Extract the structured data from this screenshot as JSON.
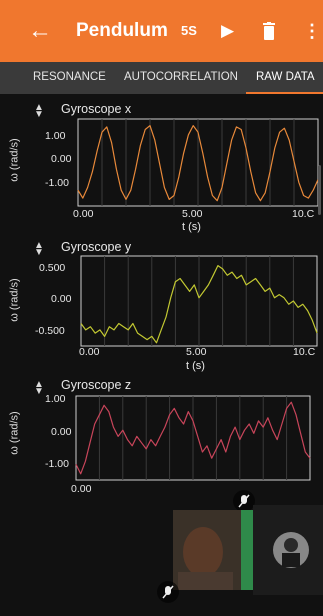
{
  "app": {
    "title": "Pendulum",
    "duration": "5S",
    "accent": "#f0772e",
    "back_icon": "back-arrow-icon",
    "play_icon": "play-icon",
    "delete_icon": "trash-icon",
    "menu_icon": "more-vert-icon"
  },
  "tabs": [
    {
      "label": "RESONANCE"
    },
    {
      "label": "AUTOCORRELATION"
    },
    {
      "label": "RAW DATA",
      "active": true
    }
  ],
  "chart_data": [
    {
      "type": "line",
      "title": "Gyroscope x",
      "xlabel": "t (s)",
      "ylabel": "ω (rad/s)",
      "xlim": [
        0,
        10
      ],
      "ylim": [
        -1.6,
        1.7
      ],
      "color": "#e8893a",
      "ytick_labels": [
        "1.00",
        "0.00",
        "-1.00"
      ],
      "xtick_labels": [
        "0.00",
        "5.00",
        "10.C"
      ],
      "x": [
        0,
        0.2,
        0.4,
        0.6,
        0.8,
        1,
        1.2,
        1.4,
        1.6,
        1.8,
        2,
        2.2,
        2.4,
        2.6,
        2.8,
        3,
        3.2,
        3.4,
        3.6,
        3.8,
        4,
        4.2,
        4.4,
        4.6,
        4.8,
        5,
        5.2,
        5.4,
        5.6,
        5.8,
        6,
        6.2,
        6.4,
        6.6,
        6.8,
        7,
        7.2,
        7.4,
        7.6,
        7.8,
        8,
        8.2,
        8.4,
        8.6,
        8.8,
        9,
        9.2,
        9.4,
        9.6,
        9.8,
        10
      ],
      "y": [
        -1.0,
        -1.3,
        -0.9,
        -0.3,
        0.5,
        1.2,
        1.4,
        0.8,
        -0.2,
        -1.0,
        -1.35,
        -1.0,
        -0.2,
        0.7,
        1.3,
        1.45,
        0.9,
        0.0,
        -0.9,
        -1.35,
        -1.2,
        -0.5,
        0.4,
        1.1,
        1.45,
        1.2,
        0.4,
        -0.5,
        -1.2,
        -1.4,
        -0.9,
        0.0,
        0.9,
        1.4,
        1.3,
        0.6,
        -0.3,
        -1.1,
        -1.4,
        -1.1,
        -0.3,
        0.6,
        1.2,
        1.35,
        0.9,
        0.1,
        -0.7,
        -1.2,
        -1.3,
        -1.0,
        -0.6
      ]
    },
    {
      "type": "line",
      "title": "Gyroscope y",
      "xlabel": "t (s)",
      "ylabel": "ω (rad/s)",
      "xlim": [
        0,
        10
      ],
      "ylim": [
        -0.65,
        0.75
      ],
      "color": "#c2c832",
      "ytick_labels": [
        "0.500",
        "0.00",
        "-0.500"
      ],
      "xtick_labels": [
        "0.00",
        "5.00",
        "10.C"
      ],
      "x": [
        0,
        0.2,
        0.4,
        0.6,
        0.8,
        1,
        1.2,
        1.4,
        1.6,
        1.8,
        2,
        2.2,
        2.4,
        2.6,
        2.8,
        3,
        3.2,
        3.4,
        3.6,
        3.8,
        4,
        4.2,
        4.4,
        4.6,
        4.8,
        5,
        5.2,
        5.4,
        5.6,
        5.8,
        6,
        6.2,
        6.4,
        6.6,
        6.8,
        7,
        7.2,
        7.4,
        7.6,
        7.8,
        8,
        8.2,
        8.4,
        8.6,
        8.8,
        9,
        9.2,
        9.4,
        9.6,
        9.8,
        10
      ],
      "y": [
        -0.3,
        -0.4,
        -0.35,
        -0.45,
        -0.4,
        -0.5,
        -0.35,
        -0.4,
        -0.3,
        -0.35,
        -0.4,
        -0.3,
        -0.45,
        -0.5,
        -0.55,
        -0.5,
        -0.6,
        -0.4,
        -0.2,
        0.1,
        0.35,
        0.4,
        0.3,
        0.2,
        0.3,
        0.1,
        0.2,
        0.3,
        0.45,
        0.6,
        0.55,
        0.45,
        0.5,
        0.4,
        0.45,
        0.3,
        0.35,
        0.4,
        0.3,
        0.2,
        0.25,
        0.1,
        0.15,
        0.1,
        0.0,
        0.05,
        -0.05,
        0.0,
        -0.1,
        -0.25,
        -0.45
      ]
    },
    {
      "type": "line",
      "title": "Gyroscope z",
      "xlabel": "",
      "ylabel": "ω (rad/s)",
      "xlim": [
        0,
        10
      ],
      "ylim": [
        -1.5,
        1.2
      ],
      "color": "#c8455a",
      "ytick_labels": [
        "1.00",
        "0.00",
        "-1.00"
      ],
      "xtick_labels": [
        "0.00"
      ],
      "x": [
        0,
        0.2,
        0.4,
        0.6,
        0.8,
        1,
        1.2,
        1.4,
        1.6,
        1.8,
        2,
        2.2,
        2.4,
        2.6,
        2.8,
        3,
        3.2,
        3.4,
        3.6,
        3.8,
        4,
        4.2,
        4.4,
        4.6,
        4.8,
        5,
        5.2,
        5.4,
        5.6,
        5.8,
        6,
        6.2,
        6.4,
        6.6,
        6.8,
        7,
        7.2,
        7.4,
        7.6,
        7.8,
        8,
        8.2,
        8.4,
        8.6,
        8.8,
        9,
        9.2,
        9.4,
        9.6,
        9.8,
        10
      ],
      "y": [
        -1.0,
        -1.3,
        -0.9,
        -0.3,
        0.3,
        0.6,
        0.9,
        0.7,
        0.2,
        -0.1,
        0.1,
        -0.2,
        -0.4,
        -0.1,
        -0.3,
        -0.5,
        -0.2,
        -0.4,
        -0.1,
        0.2,
        0.6,
        0.8,
        0.5,
        0.3,
        0.7,
        0.4,
        -0.1,
        -0.6,
        -0.4,
        -0.8,
        -0.5,
        -0.2,
        -0.6,
        -0.1,
        0.2,
        -0.2,
        0.1,
        0.3,
        0.0,
        0.4,
        0.2,
        0.5,
        0.1,
        -0.2,
        0.3,
        0.8,
        1.0,
        0.6,
        0.0,
        -0.6,
        -0.8
      ]
    }
  ],
  "overlay": {
    "mic_off_icon": "mic-off-icon",
    "participant_video": "video-tile",
    "participant_avatar": "avatar"
  }
}
